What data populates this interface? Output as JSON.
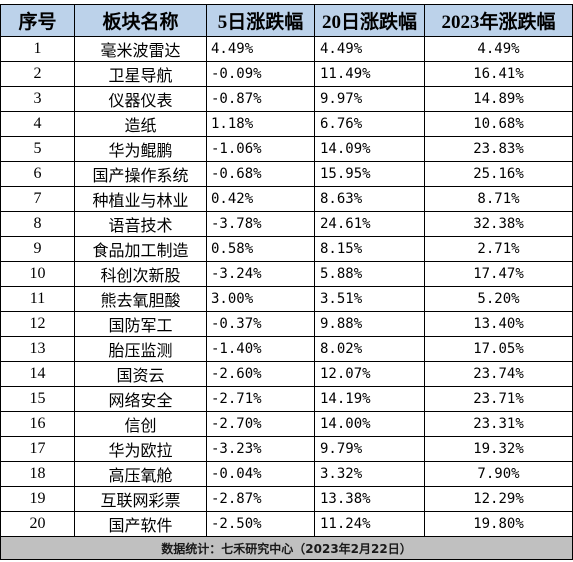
{
  "headers": [
    "序号",
    "板块名称",
    "5日涨跌幅",
    "20日涨跌幅",
    "2023年涨跌幅"
  ],
  "rows": [
    [
      "1",
      "毫米波雷达",
      "4.49%",
      "4.49%",
      "4.49%"
    ],
    [
      "2",
      "卫星导航",
      "-0.09%",
      "11.49%",
      "16.41%"
    ],
    [
      "3",
      "仪器仪表",
      "-0.87%",
      "9.97%",
      "14.89%"
    ],
    [
      "4",
      "造纸",
      "1.18%",
      "6.76%",
      "10.68%"
    ],
    [
      "5",
      "华为鲲鹏",
      "-1.06%",
      "14.09%",
      "23.83%"
    ],
    [
      "6",
      "国产操作系统",
      "-0.68%",
      "15.95%",
      "25.16%"
    ],
    [
      "7",
      "种植业与林业",
      "0.42%",
      "8.63%",
      "8.71%"
    ],
    [
      "8",
      "语音技术",
      "-3.78%",
      "24.61%",
      "32.38%"
    ],
    [
      "9",
      "食品加工制造",
      "0.58%",
      "8.15%",
      "2.71%"
    ],
    [
      "10",
      "科创次新股",
      "-3.24%",
      "5.88%",
      "17.47%"
    ],
    [
      "11",
      "熊去氧胆酸",
      "3.00%",
      "3.51%",
      "5.20%"
    ],
    [
      "12",
      "国防军工",
      "-0.37%",
      "9.88%",
      "13.40%"
    ],
    [
      "13",
      "胎压监测",
      "-1.40%",
      "8.02%",
      "17.05%"
    ],
    [
      "14",
      "国资云",
      "-2.60%",
      "12.07%",
      "23.74%"
    ],
    [
      "15",
      "网络安全",
      "-2.71%",
      "14.19%",
      "23.71%"
    ],
    [
      "16",
      "信创",
      "-2.70%",
      "14.00%",
      "23.31%"
    ],
    [
      "17",
      "华为欧拉",
      "-3.23%",
      "9.79%",
      "19.32%"
    ],
    [
      "18",
      "高压氧舱",
      "-0.04%",
      "3.32%",
      "7.90%"
    ],
    [
      "19",
      "互联网彩票",
      "-2.87%",
      "13.38%",
      "12.29%"
    ],
    [
      "20",
      "国产软件",
      "-2.50%",
      "11.24%",
      "19.80%"
    ]
  ],
  "footer": "数据统计：七禾研究中心（2023年2月22日）",
  "colors": {
    "header_bg": "#bcd2ea",
    "footer_bg": "#c0c0c0",
    "border": "#000000"
  }
}
